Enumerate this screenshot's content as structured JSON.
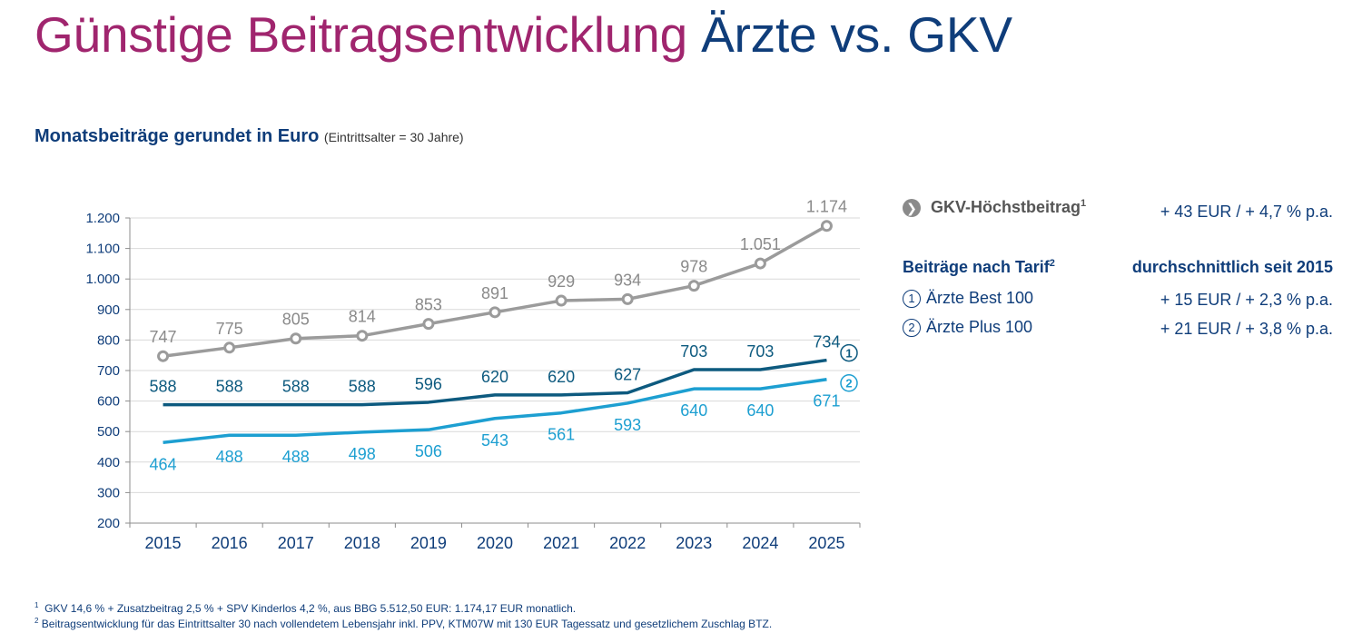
{
  "title": {
    "part1": "Günstige Beitragsentwicklung",
    "part2": "Ärzte vs. GKV"
  },
  "subtitle": {
    "main": "Monatsbeiträge gerundet in Euro",
    "note": "(Eintrittsalter = 30 Jahre)"
  },
  "chart_data": {
    "type": "line",
    "categories": [
      "2015",
      "2016",
      "2017",
      "2018",
      "2019",
      "2020",
      "2021",
      "2022",
      "2023",
      "2024",
      "2025"
    ],
    "ylim": [
      200,
      1200
    ],
    "yticks": [
      200,
      300,
      400,
      500,
      600,
      700,
      800,
      900,
      1000,
      1100,
      1200
    ],
    "ytick_labels": [
      "200",
      "300",
      "400",
      "500",
      "600",
      "700",
      "800",
      "900",
      "1.000",
      "1.100",
      "1.200"
    ],
    "series": [
      {
        "name": "GKV-Höchstbeitrag",
        "color": "#9b9b9b",
        "values": [
          747,
          775,
          805,
          814,
          853,
          891,
          929,
          934,
          978,
          1051,
          1174
        ],
        "labels": [
          "747",
          "775",
          "805",
          "814",
          "853",
          "891",
          "929",
          "934",
          "978",
          "1.051",
          "1.174"
        ]
      },
      {
        "name": "Ärzte Best 100",
        "color": "#0d5a7f",
        "marker": "1",
        "values": [
          588,
          588,
          588,
          588,
          596,
          620,
          620,
          627,
          703,
          703,
          734
        ],
        "labels": [
          "588",
          "588",
          "588",
          "588",
          "596",
          "620",
          "620",
          "627",
          "703",
          "703",
          "734"
        ]
      },
      {
        "name": "Ärzte Plus 100",
        "color": "#1d9fd1",
        "marker": "2",
        "values": [
          464,
          488,
          488,
          498,
          506,
          543,
          561,
          593,
          640,
          640,
          671
        ],
        "labels": [
          "464",
          "488",
          "488",
          "498",
          "506",
          "543",
          "561",
          "593",
          "640",
          "640",
          "671"
        ]
      }
    ]
  },
  "legend": {
    "gkv_label": "GKV-Höchstbeitrag",
    "gkv_sup": "1",
    "gkv_value": "+ 43 EUR /   + 4,7 %   p.a.",
    "tarif_header": "Beiträge nach Tarif",
    "tarif_sup": "2",
    "avg_header": "durchschnittlich seit 2015",
    "best_num": "1",
    "best_label": "Ärzte Best 100",
    "best_value": "+ 15 EUR /   + 2,3 %   p.a.",
    "plus_num": "2",
    "plus_label": "Ärzte Plus 100",
    "plus_value": "+ 21 EUR /   + 3,8 %   p.a."
  },
  "footnotes": {
    "n1_sup": "1",
    "n1": "GKV 14,6 % + Zusatzbeitrag 2,5 % + SPV Kinderlos 4,2 %, aus BBG 5.512,50 EUR: 1.174,17 EUR monatlich.",
    "n2_sup": "2",
    "n2": "Beitragsentwicklung für das Eintrittsalter 30 nach vollendetem Lebensjahr inkl. PPV, KTM07W mit 130 EUR Tagessatz und gesetzlichem Zuschlag BTZ."
  }
}
